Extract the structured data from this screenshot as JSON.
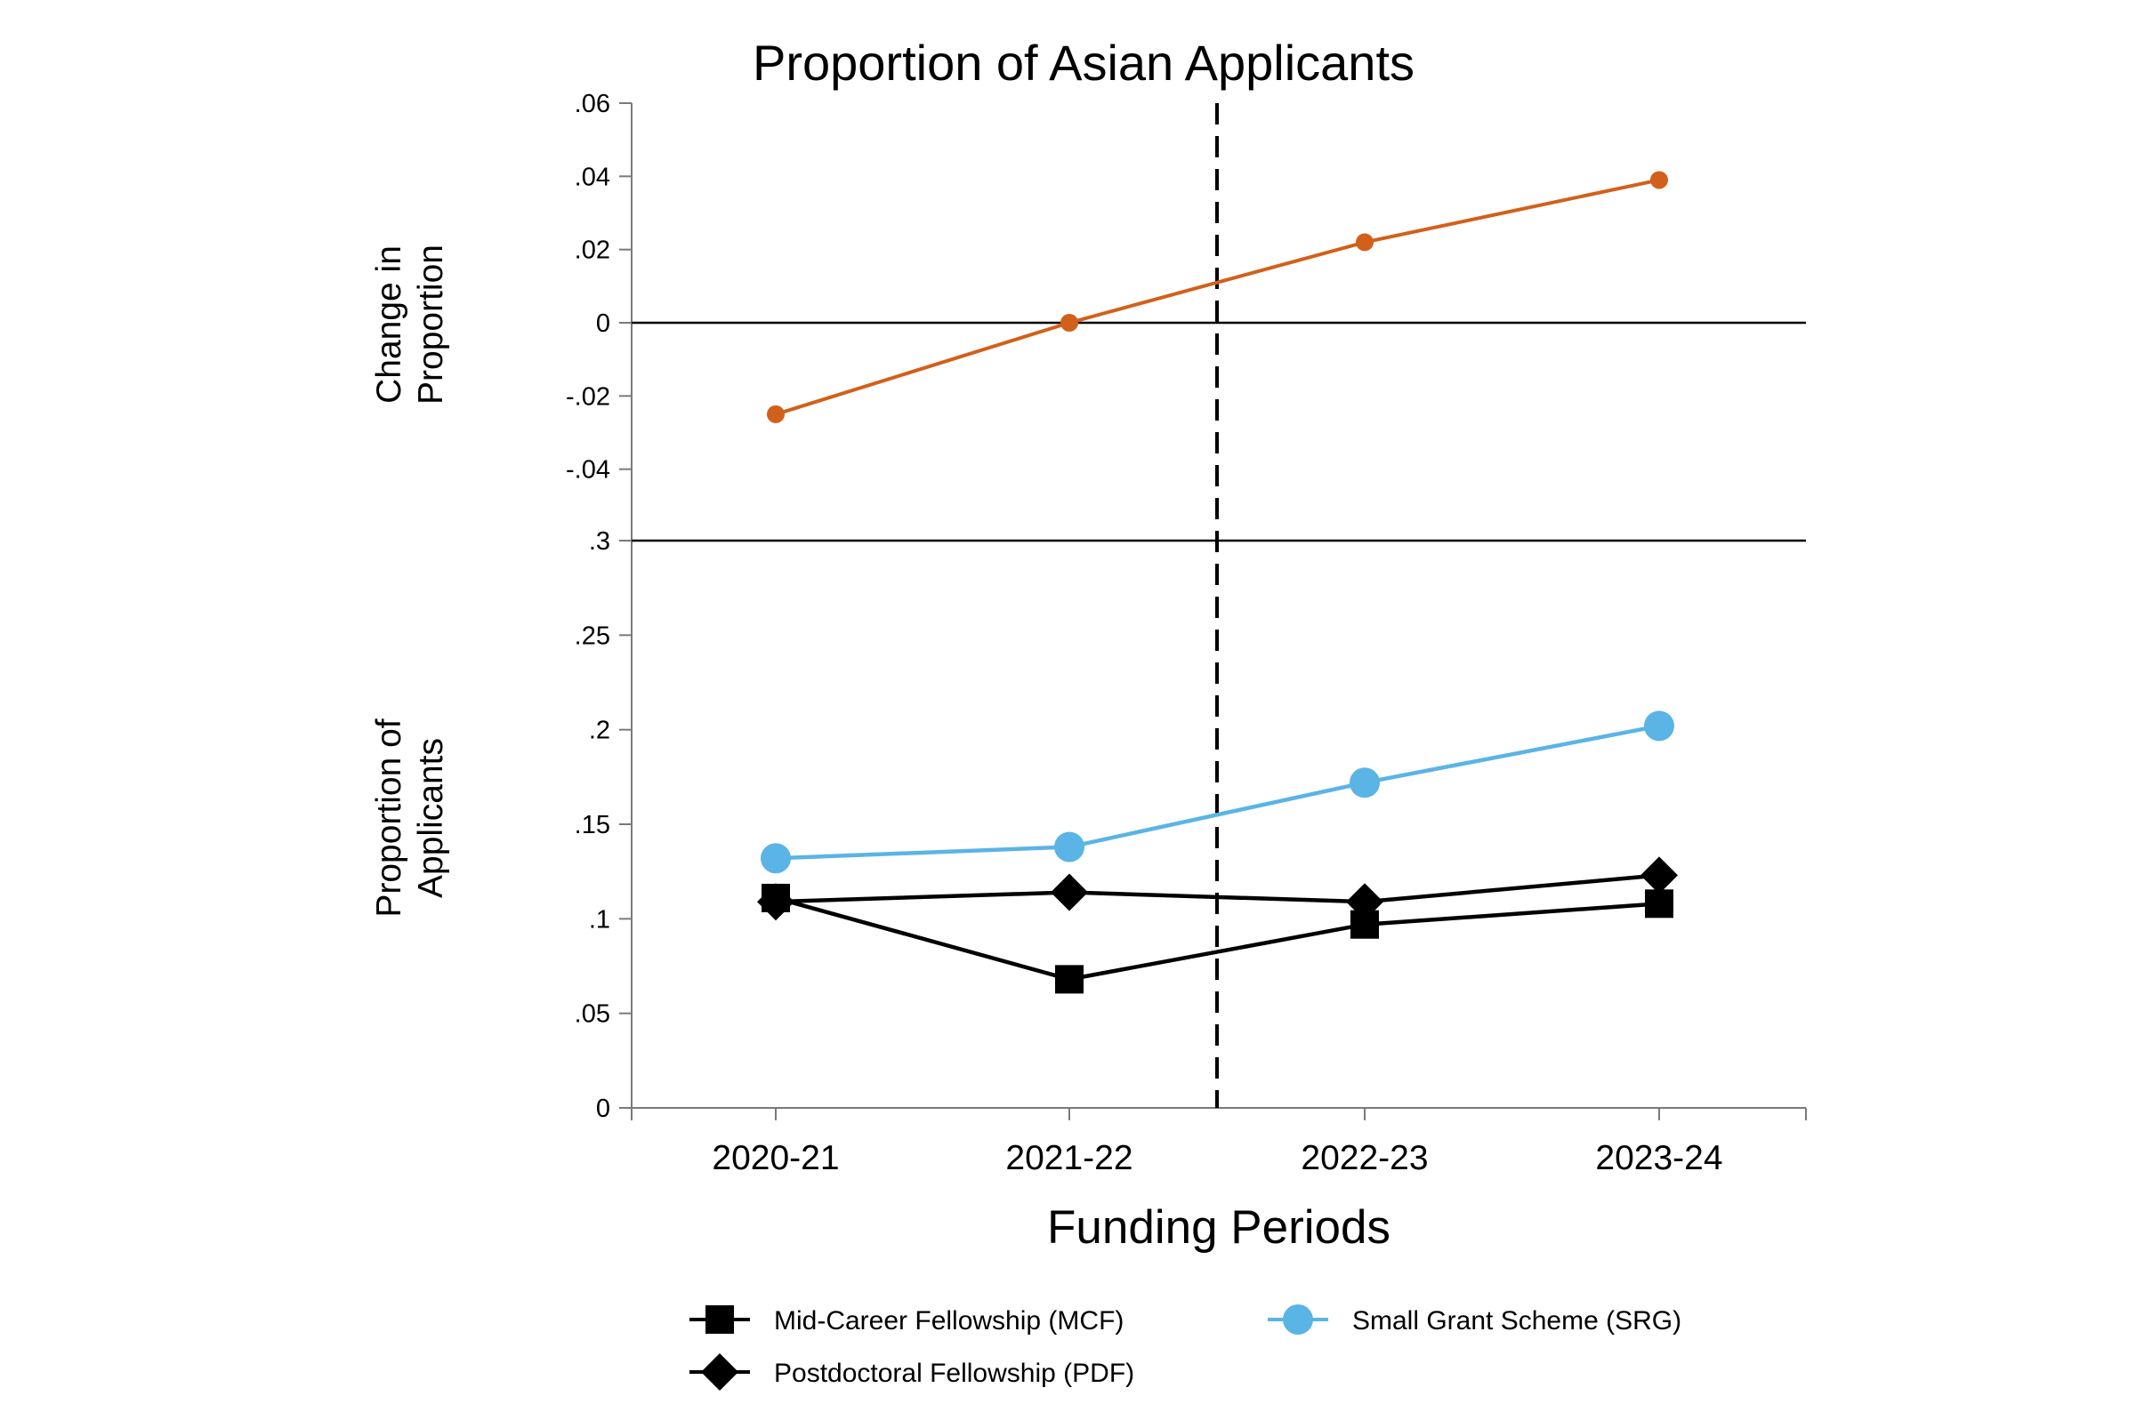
{
  "chart_data": {
    "type": "line",
    "title": "Proportion of Asian Applicants",
    "xlabel": "Funding Periods",
    "categories": [
      "2020-21",
      "2021-22",
      "2022-23",
      "2023-24"
    ],
    "vline_between": [
      "2021-22",
      "2022-23"
    ],
    "panels": [
      {
        "id": "top",
        "ylabel_lines": [
          "Change in",
          "Proportion"
        ],
        "ylim": [
          -0.06,
          0.06
        ],
        "yticks": [
          {
            "value": 0.06,
            "label": ".06"
          },
          {
            "value": 0.04,
            "label": ".04"
          },
          {
            "value": 0.02,
            "label": ".02"
          },
          {
            "value": 0,
            "label": "0"
          },
          {
            "value": -0.02,
            "label": "-.02"
          },
          {
            "value": -0.04,
            "label": "-.04"
          }
        ],
        "hline": 0,
        "series": [
          {
            "key": "change",
            "color": "#D2601A",
            "marker": "circle-small",
            "values": [
              -0.025,
              0.0,
              0.022,
              0.039
            ]
          }
        ]
      },
      {
        "id": "bottom",
        "ylabel_lines": [
          "Proportion of",
          "Applicants"
        ],
        "ylim": [
          0,
          0.3
        ],
        "yticks": [
          {
            "value": 0.3,
            "label": ".3"
          },
          {
            "value": 0.25,
            "label": ".25"
          },
          {
            "value": 0.2,
            "label": ".2"
          },
          {
            "value": 0.15,
            "label": ".15"
          },
          {
            "value": 0.1,
            "label": ".1"
          },
          {
            "value": 0.05,
            "label": ".05"
          },
          {
            "value": 0,
            "label": "0"
          }
        ],
        "series": [
          {
            "key": "srg",
            "name": "Small Grant Scheme (SRG)",
            "color": "#5AB4E5",
            "marker": "circle",
            "values": [
              0.132,
              0.138,
              0.172,
              0.202
            ]
          },
          {
            "key": "pdf",
            "name": "Postdoctoral Fellowship (PDF)",
            "color": "#000000",
            "marker": "diamond",
            "values": [
              0.109,
              0.114,
              0.109,
              0.123
            ]
          },
          {
            "key": "mcf",
            "name": "Mid-Career Fellowship (MCF)",
            "color": "#000000",
            "marker": "square",
            "values": [
              0.111,
              0.068,
              0.097,
              0.108
            ]
          }
        ]
      }
    ],
    "legend": {
      "placement": "bottom",
      "entries": [
        {
          "series": "mcf",
          "label": "Mid-Career Fellowship (MCF)"
        },
        {
          "series": "srg",
          "label": "Small Grant Scheme (SRG)"
        },
        {
          "series": "pdf",
          "label": "Postdoctoral Fellowship (PDF)"
        }
      ]
    }
  }
}
